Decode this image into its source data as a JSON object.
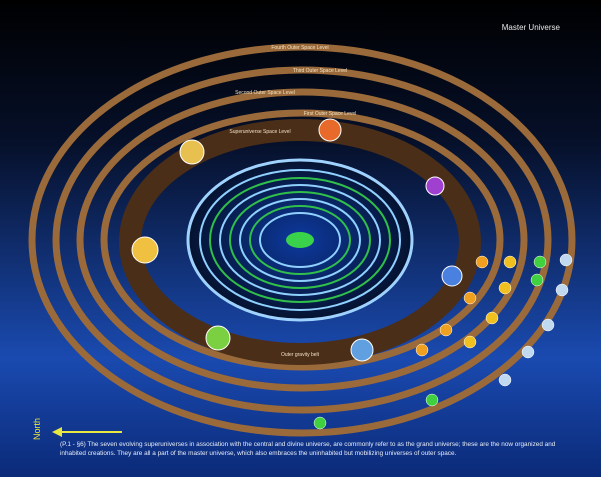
{
  "title": "Master Universe",
  "ring_labels": [
    "Fourth Outer Space Level",
    "Third Outer Space Level",
    "Second Outer Space Level",
    "First Outer Space Level",
    "Superuniverse Space Level"
  ],
  "belt_label": "Outer gravity belt",
  "direction": "North",
  "caption": "(P.1 - §6) The seven evolving superuniverses in association with the central and divine universe, are commonly refer to as the grand universe; these are the now organized and inhabited creations. They are all a part of the master universe, which also embraces the uninhabited but mobilizing universes of outer space."
}
